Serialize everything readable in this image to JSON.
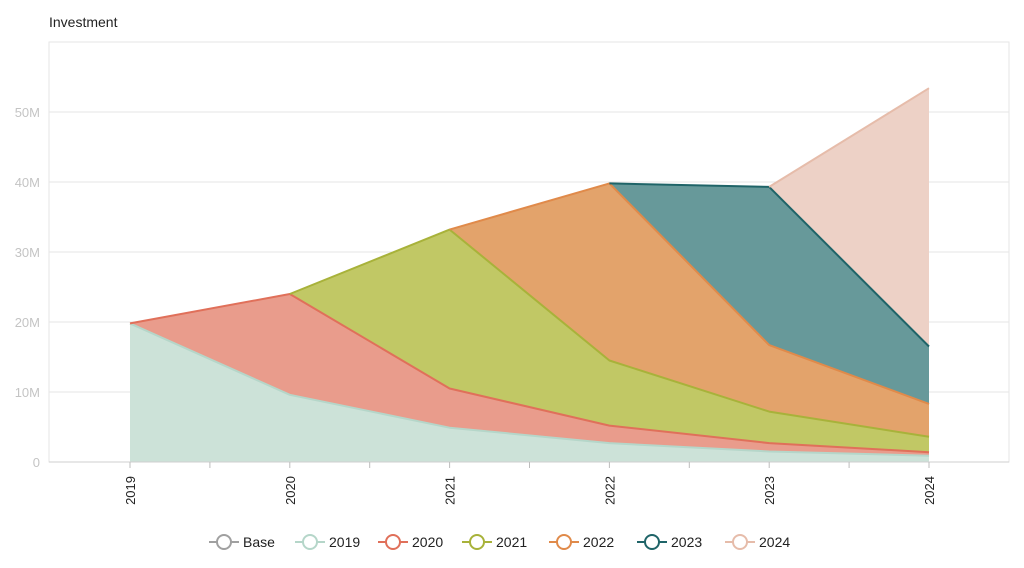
{
  "chart_data": {
    "type": "area",
    "stacked": true,
    "title": "",
    "xlabel": "",
    "ylabel": "Investment",
    "x": [
      "2019",
      "2020",
      "2021",
      "2022",
      "2023",
      "2024"
    ],
    "ylim": [
      0,
      60000000
    ],
    "y_ticks": [
      0,
      10000000,
      20000000,
      30000000,
      40000000,
      50000000
    ],
    "y_tick_labels": [
      "0",
      "10M",
      "20M",
      "30M",
      "40M",
      "50M"
    ],
    "grid": true,
    "legend_position": "bottom",
    "series": [
      {
        "name": "Base",
        "color": "#a0a0a0",
        "fill": "#d6d6d6",
        "values": [
          0,
          0,
          0,
          0,
          0,
          0
        ]
      },
      {
        "name": "2019",
        "color": "#b5d6c9",
        "fill": "#cce2d8",
        "values": [
          19800000,
          9600000,
          4900000,
          2700000,
          1500000,
          900000
        ]
      },
      {
        "name": "2020",
        "color": "#e0705a",
        "fill": "#e99c8c",
        "values": [
          0,
          14400000,
          5600000,
          2500000,
          1200000,
          500000
        ]
      },
      {
        "name": "2021",
        "color": "#a8b23a",
        "fill": "#c1c865",
        "values": [
          0,
          0,
          22700000,
          9300000,
          4500000,
          2200000
        ]
      },
      {
        "name": "2022",
        "color": "#e08a4a",
        "fill": "#e3a36b",
        "values": [
          0,
          0,
          0,
          25300000,
          9500000,
          4700000
        ]
      },
      {
        "name": "2023",
        "color": "#1f6468",
        "fill": "#67999a",
        "values": [
          0,
          0,
          0,
          0,
          22600000,
          8200000
        ]
      },
      {
        "name": "2024",
        "color": "#e6bcaa",
        "fill": "#edd1c6",
        "values": [
          0,
          0,
          0,
          0,
          0,
          36900000
        ]
      }
    ]
  }
}
